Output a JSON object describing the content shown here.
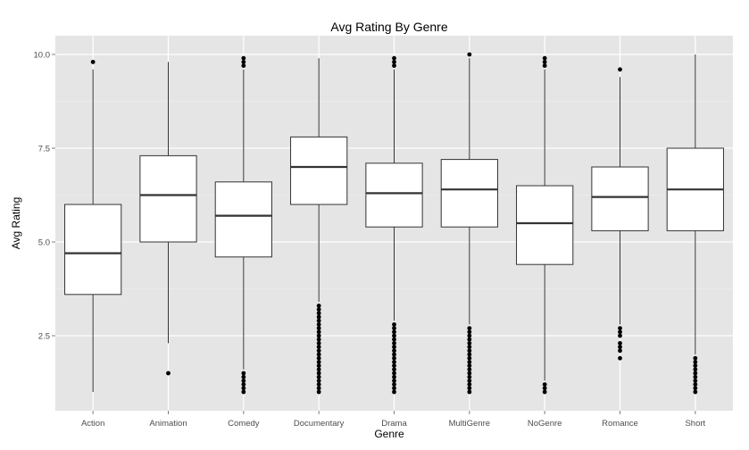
{
  "chart_data": {
    "type": "boxplot",
    "title": "Avg Rating By Genre",
    "xlabel": "Genre",
    "ylabel": "Avg Rating",
    "ylim": [
      0.5,
      10.5
    ],
    "yticks": [
      2.5,
      5.0,
      7.5,
      10.0
    ],
    "ytick_labels": [
      "2.5",
      "5.0",
      "7.5",
      "10.0"
    ],
    "grid": true,
    "legend": "none",
    "colors": {
      "panel": "#e5e5e5",
      "grid_major": "#ffffff",
      "grid_minor": "#f2f2f2",
      "box_fill": "#ffffff",
      "stroke": "#333333",
      "outlier": "#000000",
      "tick_text": "#4d4d4d"
    },
    "categories": [
      "Action",
      "Animation",
      "Comedy",
      "Documentary",
      "Drama",
      "MultiGenre",
      "NoGenre",
      "Romance",
      "Short"
    ],
    "boxes": [
      {
        "category": "Action",
        "whisker_low": 1.0,
        "q1": 3.6,
        "median": 4.7,
        "q3": 6.0,
        "whisker_high": 9.6,
        "outliers": [
          9.8
        ]
      },
      {
        "category": "Animation",
        "whisker_low": 2.3,
        "q1": 5.0,
        "median": 6.25,
        "q3": 7.3,
        "whisker_high": 9.8,
        "outliers": [
          1.5
        ]
      },
      {
        "category": "Comedy",
        "whisker_low": 1.6,
        "q1": 4.6,
        "median": 5.7,
        "q3": 6.6,
        "whisker_high": 9.6,
        "outliers": [
          1.0,
          1.1,
          1.2,
          1.3,
          1.4,
          1.5,
          9.7,
          9.8,
          9.9
        ]
      },
      {
        "category": "Documentary",
        "whisker_low": 3.4,
        "q1": 6.0,
        "median": 7.0,
        "q3": 7.8,
        "whisker_high": 9.9,
        "outliers": [
          1.0,
          1.1,
          1.2,
          1.3,
          1.4,
          1.5,
          1.6,
          1.7,
          1.8,
          1.9,
          2.0,
          2.1,
          2.2,
          2.3,
          2.4,
          2.5,
          2.6,
          2.7,
          2.8,
          2.9,
          3.0,
          3.1,
          3.2,
          3.3
        ]
      },
      {
        "category": "Drama",
        "whisker_low": 2.9,
        "q1": 5.4,
        "median": 6.3,
        "q3": 7.1,
        "whisker_high": 9.6,
        "outliers": [
          1.0,
          1.1,
          1.2,
          1.3,
          1.4,
          1.5,
          1.6,
          1.7,
          1.8,
          1.9,
          2.0,
          2.1,
          2.2,
          2.3,
          2.4,
          2.5,
          2.6,
          2.7,
          2.8,
          9.7,
          9.8,
          9.9
        ]
      },
      {
        "category": "MultiGenre",
        "whisker_low": 2.8,
        "q1": 5.4,
        "median": 6.4,
        "q3": 7.2,
        "whisker_high": 9.9,
        "outliers": [
          1.0,
          1.1,
          1.2,
          1.3,
          1.4,
          1.5,
          1.6,
          1.7,
          1.8,
          1.9,
          2.0,
          2.1,
          2.2,
          2.3,
          2.4,
          2.5,
          2.6,
          2.7,
          10.0
        ]
      },
      {
        "category": "NoGenre",
        "whisker_low": 1.3,
        "q1": 4.4,
        "median": 5.5,
        "q3": 6.5,
        "whisker_high": 9.6,
        "outliers": [
          1.0,
          1.1,
          1.2,
          9.7,
          9.8,
          9.9
        ]
      },
      {
        "category": "Romance",
        "whisker_low": 2.8,
        "q1": 5.3,
        "median": 6.2,
        "q3": 7.0,
        "whisker_high": 9.4,
        "outliers": [
          1.9,
          2.1,
          2.2,
          2.3,
          2.5,
          2.6,
          2.7,
          9.6
        ]
      },
      {
        "category": "Short",
        "whisker_low": 2.0,
        "q1": 5.3,
        "median": 6.4,
        "q3": 7.5,
        "whisker_high": 10.0,
        "outliers": [
          1.0,
          1.1,
          1.2,
          1.3,
          1.4,
          1.5,
          1.6,
          1.7,
          1.8,
          1.9
        ]
      }
    ]
  }
}
